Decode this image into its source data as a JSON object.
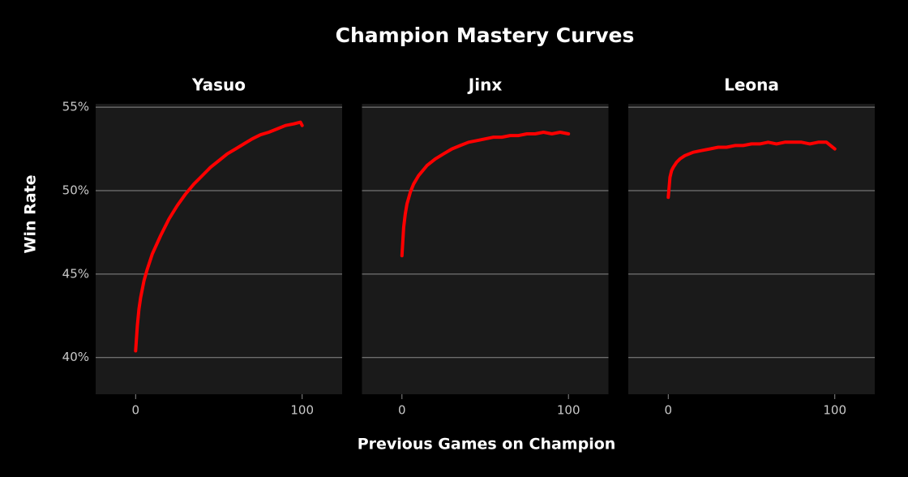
{
  "title": "Champion Mastery Curves",
  "x_label": "Previous Games on Champion",
  "y_label": "Win Rate",
  "ylim": [
    37.8,
    55.2
  ],
  "yticks": [
    {
      "value": 40,
      "label": "40%"
    },
    {
      "value": 45,
      "label": "45%"
    },
    {
      "value": 50,
      "label": "50%"
    },
    {
      "value": 55,
      "label": "55%"
    }
  ],
  "grid": true,
  "chart_data": [
    {
      "type": "line",
      "title": "Yasuo",
      "color": "#ff0000",
      "xlim": [
        -24,
        124
      ],
      "xticks": [
        0,
        100
      ],
      "x": [
        0,
        1,
        2,
        3,
        5,
        7,
        10,
        15,
        20,
        25,
        30,
        35,
        40,
        45,
        50,
        55,
        60,
        65,
        70,
        75,
        80,
        85,
        90,
        95,
        99,
        100
      ],
      "values": [
        40.4,
        41.9,
        42.9,
        43.6,
        44.6,
        45.3,
        46.2,
        47.3,
        48.3,
        49.1,
        49.8,
        50.4,
        50.9,
        51.4,
        51.8,
        52.2,
        52.5,
        52.8,
        53.1,
        53.35,
        53.5,
        53.7,
        53.9,
        54.0,
        54.1,
        53.9
      ]
    },
    {
      "type": "line",
      "title": "Jinx",
      "color": "#ff0000",
      "xlim": [
        -24,
        124
      ],
      "xticks": [
        0,
        100
      ],
      "x": [
        0,
        1,
        2,
        3,
        5,
        7,
        10,
        15,
        20,
        25,
        30,
        35,
        40,
        45,
        50,
        55,
        60,
        65,
        70,
        75,
        80,
        85,
        90,
        95,
        100
      ],
      "values": [
        46.1,
        47.8,
        48.6,
        49.2,
        49.9,
        50.4,
        50.9,
        51.5,
        51.9,
        52.2,
        52.5,
        52.7,
        52.9,
        53.0,
        53.1,
        53.2,
        53.2,
        53.3,
        53.3,
        53.4,
        53.4,
        53.5,
        53.4,
        53.5,
        53.4
      ]
    },
    {
      "type": "line",
      "title": "Leona",
      "color": "#ff0000",
      "xlim": [
        -24,
        124
      ],
      "xticks": [
        0,
        100
      ],
      "x": [
        0,
        1,
        2,
        3,
        5,
        7,
        10,
        15,
        20,
        25,
        30,
        35,
        40,
        45,
        50,
        55,
        60,
        65,
        70,
        75,
        80,
        85,
        90,
        95,
        100
      ],
      "values": [
        49.6,
        50.8,
        51.2,
        51.4,
        51.7,
        51.9,
        52.1,
        52.3,
        52.4,
        52.5,
        52.6,
        52.6,
        52.7,
        52.7,
        52.8,
        52.8,
        52.9,
        52.8,
        52.9,
        52.9,
        52.9,
        52.8,
        52.9,
        52.9,
        52.5
      ]
    }
  ]
}
